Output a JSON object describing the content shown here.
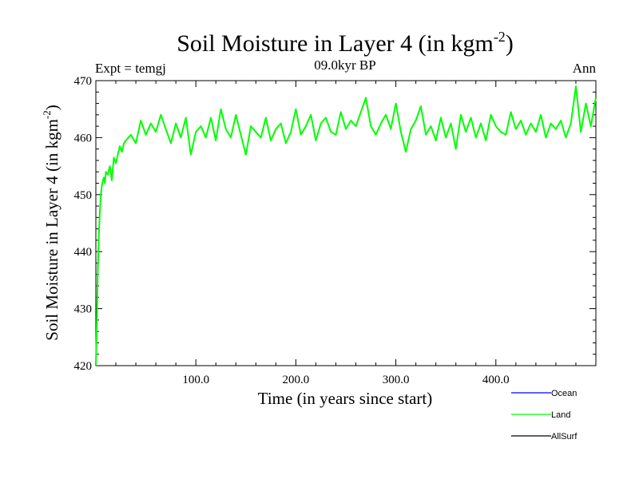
{
  "chart_data": {
    "type": "line",
    "title": "Soil Moisture in Layer 4 (in kgm",
    "title_sup": "-2",
    "title_close": ")",
    "ylabel": "Soil Moisture in Layer 4 (in kgm",
    "ylabel_sup": "-2",
    "ylabel_close": ")",
    "xlabel": "Time (in years since start)",
    "left_note": "Expt = temgj",
    "center_note": "09.0kyr BP",
    "right_note": "Ann",
    "xlim": [
      0,
      500
    ],
    "ylim": [
      420,
      470
    ],
    "x_ticks": [
      {
        "value": 100,
        "label": "100.0"
      },
      {
        "value": 200,
        "label": "200.0"
      },
      {
        "value": 300,
        "label": "300.0"
      },
      {
        "value": 400,
        "label": "400.0"
      }
    ],
    "y_ticks": [
      {
        "value": 420,
        "label": "420"
      },
      {
        "value": 430,
        "label": "430"
      },
      {
        "value": 440,
        "label": "440"
      },
      {
        "value": 450,
        "label": "450"
      },
      {
        "value": 460,
        "label": "460"
      },
      {
        "value": 470,
        "label": "470"
      }
    ],
    "legend": [
      {
        "name": "Ocean",
        "color": "#0000ff"
      },
      {
        "name": "Land",
        "color": "#00ff00"
      },
      {
        "name": "AllSurf",
        "color": "#000000"
      }
    ],
    "series": [
      {
        "name": "Land",
        "color": "#00ff00",
        "x": [
          0,
          1,
          2,
          3,
          4,
          5,
          6,
          7,
          8,
          9,
          10,
          12,
          14,
          16,
          18,
          20,
          22,
          24,
          26,
          28,
          30,
          35,
          40,
          45,
          50,
          55,
          60,
          65,
          70,
          75,
          80,
          85,
          90,
          95,
          100,
          105,
          110,
          115,
          120,
          125,
          130,
          135,
          140,
          145,
          150,
          155,
          160,
          165,
          170,
          175,
          180,
          185,
          190,
          195,
          200,
          205,
          210,
          215,
          220,
          225,
          230,
          235,
          240,
          245,
          250,
          255,
          260,
          265,
          270,
          275,
          280,
          285,
          290,
          295,
          300,
          305,
          310,
          315,
          320,
          325,
          330,
          335,
          340,
          345,
          350,
          355,
          360,
          365,
          370,
          375,
          380,
          385,
          390,
          395,
          400,
          405,
          410,
          415,
          420,
          425,
          430,
          435,
          440,
          445,
          450,
          455,
          460,
          465,
          470,
          475,
          480,
          485,
          490,
          495,
          500
        ],
        "values": [
          420.0,
          428.0,
          437.0,
          443.0,
          447.0,
          450.0,
          451.5,
          452.5,
          453.0,
          452.0,
          454.0,
          453.5,
          455.0,
          452.5,
          456.5,
          455.5,
          457.0,
          458.5,
          457.5,
          459.0,
          459.5,
          460.5,
          459.0,
          463.0,
          460.5,
          462.5,
          461.0,
          464.0,
          461.5,
          459.0,
          462.5,
          460.0,
          463.5,
          457.0,
          461.0,
          462.0,
          460.0,
          463.5,
          459.5,
          465.0,
          461.5,
          460.0,
          464.0,
          460.5,
          457.0,
          462.0,
          461.0,
          460.0,
          463.5,
          459.5,
          461.5,
          462.5,
          459.0,
          461.0,
          465.0,
          460.5,
          462.0,
          464.0,
          459.5,
          462.5,
          463.5,
          461.0,
          460.5,
          464.5,
          461.5,
          463.0,
          462.0,
          464.5,
          467.0,
          462.0,
          460.5,
          462.5,
          464.0,
          461.5,
          466.0,
          461.0,
          457.5,
          461.5,
          463.0,
          465.5,
          460.5,
          462.0,
          459.5,
          463.5,
          460.0,
          462.5,
          458.0,
          464.0,
          461.0,
          463.5,
          460.0,
          462.5,
          459.5,
          464.0,
          462.0,
          461.0,
          460.5,
          464.5,
          461.5,
          463.0,
          460.5,
          462.5,
          461.0,
          464.0,
          460.0,
          462.5,
          461.5,
          463.0,
          460.0,
          462.5,
          469.0,
          461.0,
          466.0,
          462.0,
          467.0
        ]
      },
      {
        "name": "Ocean",
        "color": "#0000ff",
        "x": [],
        "values": []
      },
      {
        "name": "AllSurf",
        "color": "#000000",
        "x": [],
        "values": []
      }
    ]
  }
}
